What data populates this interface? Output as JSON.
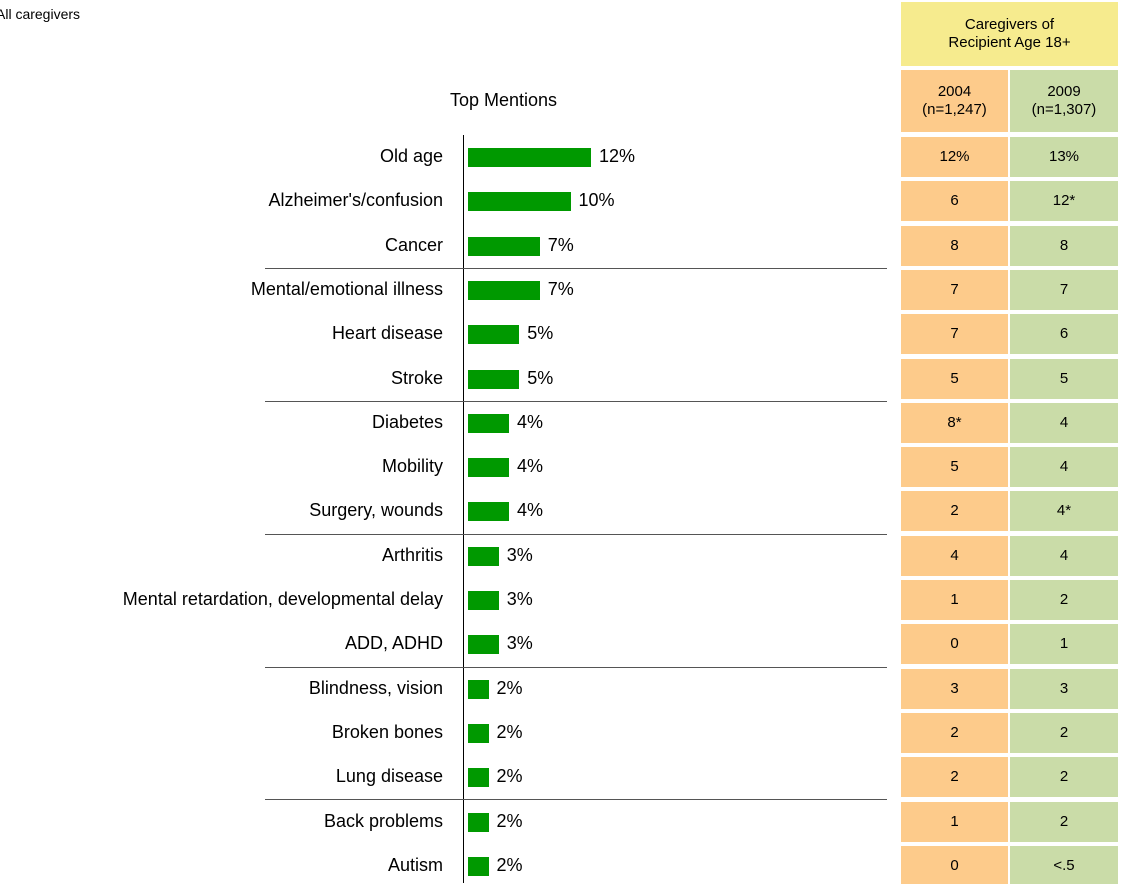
{
  "subtitle": "All caregivers",
  "chart_data": {
    "type": "bar",
    "orientation": "horizontal",
    "title": "Top Mentions",
    "categories": [
      "Old age",
      "Alzheimer's/confusion",
      "Cancer",
      "Mental/emotional illness",
      "Heart disease",
      "Stroke",
      "Diabetes",
      "Mobility",
      "Surgery, wounds",
      "Arthritis",
      "Mental retardation, developmental delay",
      "ADD, ADHD",
      "Blindness, vision",
      "Broken bones",
      "Lung disease",
      "Back problems",
      "Autism"
    ],
    "values": [
      12,
      10,
      7,
      7,
      5,
      5,
      4,
      4,
      4,
      3,
      3,
      3,
      2,
      2,
      2,
      2,
      2
    ],
    "value_labels": [
      "12%",
      "10%",
      "7%",
      "7%",
      "5%",
      "5%",
      "4%",
      "4%",
      "4%",
      "3%",
      "3%",
      "3%",
      "2%",
      "2%",
      "2%",
      "2%",
      "2%"
    ],
    "color": "#009900"
  },
  "table": {
    "header": [
      "Caregivers of",
      "Recipient Age 18+"
    ],
    "columns": [
      {
        "year": "2004",
        "n": "(n=1,247)"
      },
      {
        "year": "2009",
        "n": "(n=1,307)"
      }
    ],
    "rows": [
      [
        "12%",
        "13%"
      ],
      [
        "6",
        "12*"
      ],
      [
        "8",
        "8"
      ],
      [
        "7",
        "7"
      ],
      [
        "7",
        "6"
      ],
      [
        "5",
        "5"
      ],
      [
        "8*",
        "4"
      ],
      [
        "5",
        "4"
      ],
      [
        "2",
        "4*"
      ],
      [
        "4",
        "4"
      ],
      [
        "1",
        "2"
      ],
      [
        "0",
        "1"
      ],
      [
        "3",
        "3"
      ],
      [
        "2",
        "2"
      ],
      [
        "2",
        "2"
      ],
      [
        "1",
        "2"
      ],
      [
        "0",
        "<.5"
      ]
    ]
  }
}
